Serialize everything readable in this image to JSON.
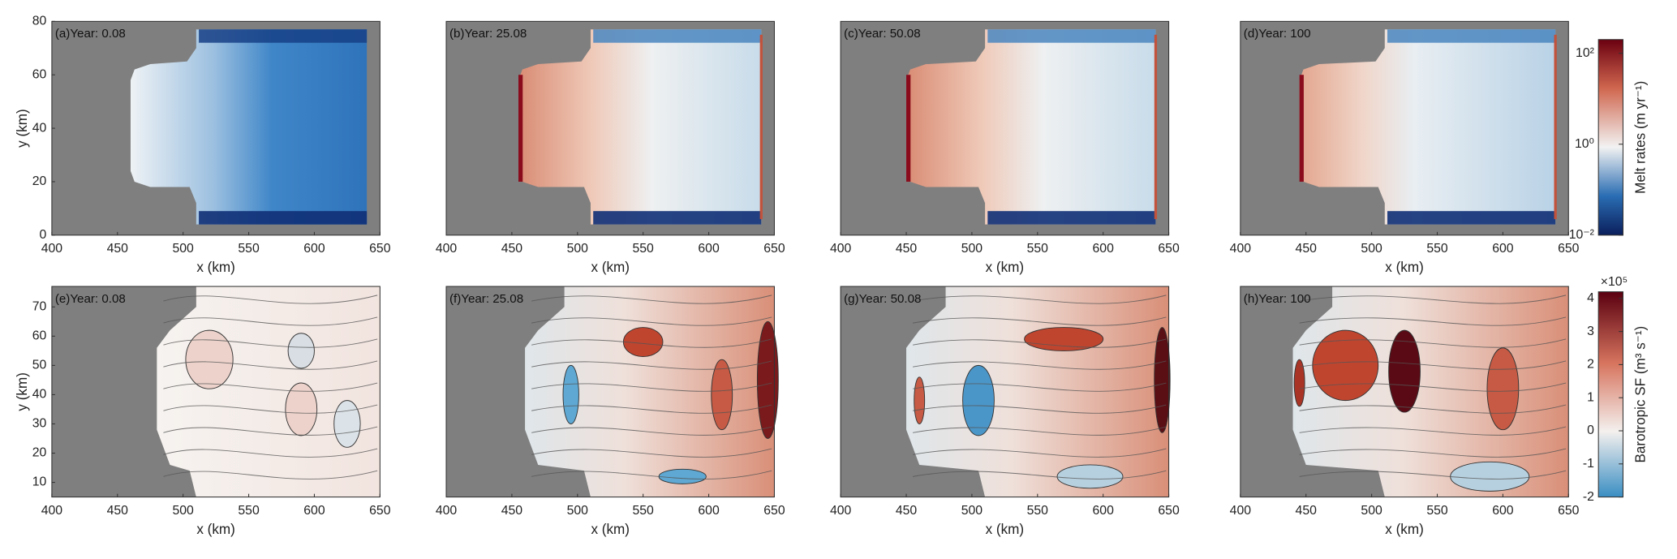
{
  "chart_data": [
    {
      "type": "heatmap",
      "title": "(a)Year: 0.08",
      "xlabel": "x (km)",
      "ylabel": "y (km)",
      "xlim": [
        400,
        650
      ],
      "xticks": [
        400,
        450,
        500,
        550,
        600,
        650
      ],
      "ylim": [
        0,
        80
      ],
      "yticks": [
        0,
        20,
        40,
        60,
        80
      ]
    },
    {
      "type": "heatmap",
      "title": "(b)Year: 25.08",
      "xlabel": "x (km)",
      "xlim": [
        400,
        650
      ],
      "xticks": [
        400,
        450,
        500,
        550,
        600,
        650
      ],
      "ylim": [
        0,
        80
      ]
    },
    {
      "type": "heatmap",
      "title": "(c)Year: 50.08",
      "xlabel": "x (km)",
      "xlim": [
        400,
        650
      ],
      "xticks": [
        400,
        450,
        500,
        550,
        600,
        650
      ],
      "ylim": [
        0,
        80
      ]
    },
    {
      "type": "heatmap",
      "title": "(d)Year: 100",
      "xlabel": "x (km)",
      "xlim": [
        400,
        650
      ],
      "xticks": [
        400,
        450,
        500,
        550,
        600,
        650
      ],
      "ylim": [
        0,
        80
      ],
      "colorbar": {
        "label": "Melt rates (m yr⁻¹)",
        "log": true,
        "lim": [
          0.01,
          200
        ],
        "ticks": [
          {
            "value": 0.01,
            "label": "10⁻²"
          },
          {
            "value": 1,
            "label": "10⁰"
          },
          {
            "value": 100,
            "label": "10²"
          }
        ]
      }
    },
    {
      "type": "contour",
      "title": "(e)Year: 0.08",
      "xlabel": "x (km)",
      "ylabel": "y (km)",
      "xlim": [
        400,
        650
      ],
      "xticks": [
        400,
        450,
        500,
        550,
        600,
        650
      ],
      "ylim": [
        5,
        77
      ],
      "yticks": [
        10,
        20,
        30,
        40,
        50,
        60,
        70
      ]
    },
    {
      "type": "contour",
      "title": "(f)Year: 25.08",
      "xlabel": "x (km)",
      "xlim": [
        400,
        650
      ],
      "xticks": [
        400,
        450,
        500,
        550,
        600,
        650
      ],
      "ylim": [
        5,
        77
      ]
    },
    {
      "type": "contour",
      "title": "(g)Year: 50.08",
      "xlabel": "x (km)",
      "xlim": [
        400,
        650
      ],
      "xticks": [
        400,
        450,
        500,
        550,
        600,
        650
      ],
      "ylim": [
        5,
        77
      ]
    },
    {
      "type": "contour",
      "title": "(h)Year: 100",
      "xlabel": "x (km)",
      "xlim": [
        400,
        650
      ],
      "xticks": [
        400,
        450,
        500,
        550,
        600,
        650
      ],
      "ylim": [
        5,
        77
      ],
      "colorbar": {
        "label": "Barotropic SF (m³ s⁻¹)",
        "multiplier": "×10⁵",
        "log": false,
        "lim": [
          -2,
          4.2
        ],
        "ticks": [
          -2,
          -1,
          0,
          1,
          2,
          3,
          4
        ]
      }
    }
  ]
}
